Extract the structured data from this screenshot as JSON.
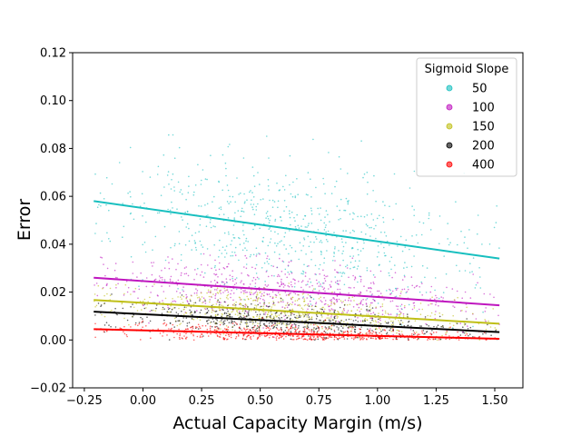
{
  "chart_data": {
    "type": "scatter",
    "title": "",
    "xlabel": "Actual Capacity Margin (m/s)",
    "ylabel": "Error",
    "xlim": [
      -0.3,
      1.62
    ],
    "ylim": [
      -0.02,
      0.12
    ],
    "xticks": [
      -0.25,
      0.0,
      0.25,
      0.5,
      0.75,
      1.0,
      1.25,
      1.5
    ],
    "xtick_labels": [
      "−0.25",
      "0.00",
      "0.25",
      "0.50",
      "0.75",
      "1.00",
      "1.25",
      "1.50"
    ],
    "yticks": [
      -0.02,
      0.0,
      0.02,
      0.04,
      0.06,
      0.08,
      0.1,
      0.12
    ],
    "ytick_labels": [
      "−0.02",
      "0.00",
      "0.02",
      "0.04",
      "0.06",
      "0.08",
      "0.10",
      "0.12"
    ],
    "grid": false,
    "legend": {
      "title": "Sigmoid Slope",
      "placement": "top-right"
    },
    "series": [
      {
        "name": "50",
        "color": "#17bfbf",
        "x_range": [
          -0.21,
          1.52
        ],
        "y_range": [
          0.0,
          0.094
        ],
        "fit": {
          "x": [
            -0.21,
            1.52
          ],
          "y": [
            0.058,
            0.034
          ]
        }
      },
      {
        "name": "100",
        "color": "#bf17bf",
        "x_range": [
          -0.21,
          1.52
        ],
        "y_range": [
          0.0,
          0.036
        ],
        "fit": {
          "x": [
            -0.21,
            1.52
          ],
          "y": [
            0.026,
            0.0145
          ]
        }
      },
      {
        "name": "150",
        "color": "#bfbf17",
        "x_range": [
          -0.21,
          1.52
        ],
        "y_range": [
          0.0,
          0.026
        ],
        "fit": {
          "x": [
            -0.21,
            1.52
          ],
          "y": [
            0.0167,
            0.0068
          ]
        }
      },
      {
        "name": "200",
        "color": "#000000",
        "x_range": [
          -0.21,
          1.52
        ],
        "y_range": [
          0.0,
          0.02
        ],
        "fit": {
          "x": [
            -0.21,
            1.52
          ],
          "y": [
            0.0118,
            0.0033
          ]
        }
      },
      {
        "name": "400",
        "color": "#ff0000",
        "x_range": [
          -0.21,
          1.52
        ],
        "y_range": [
          0.0,
          0.012
        ],
        "fit": {
          "x": [
            -0.21,
            1.52
          ],
          "y": [
            0.0045,
            0.0005
          ]
        }
      }
    ]
  }
}
